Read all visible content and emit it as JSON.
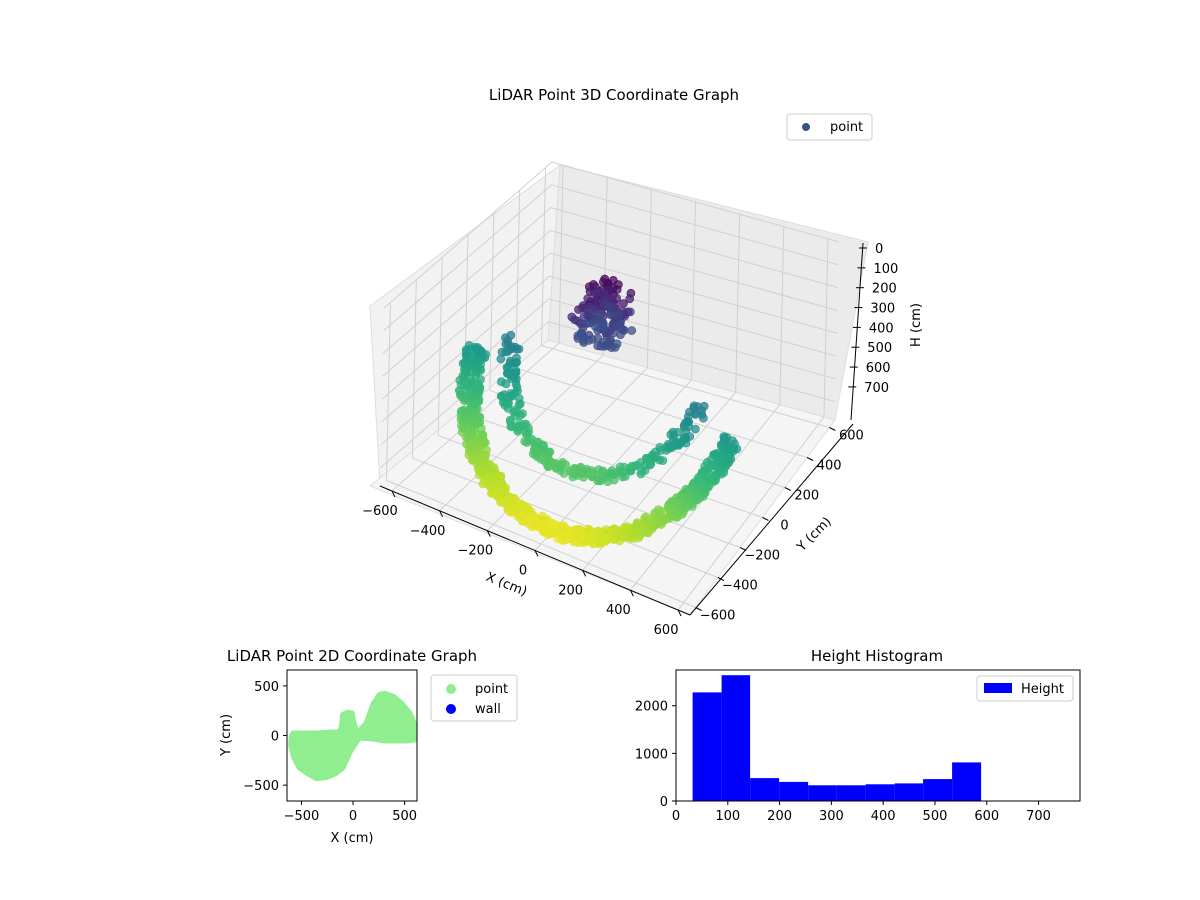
{
  "chart_data": [
    {
      "type": "scatter",
      "projection": "3d",
      "title": "LiDAR Point 3D Coordinate Graph",
      "xlabel": "X (cm)",
      "ylabel": "Y (cm)",
      "zlabel": "H (cm)",
      "xticks": [
        -600,
        -400,
        -200,
        0,
        200,
        400,
        600
      ],
      "yticks": [
        -600,
        -400,
        -200,
        0,
        200,
        400,
        600
      ],
      "zticks": [
        0,
        100,
        200,
        300,
        400,
        500,
        600,
        700
      ],
      "xlim": [
        -650,
        650
      ],
      "ylim": [
        -650,
        650
      ],
      "zlim": [
        0,
        780
      ],
      "zaxis_inverted": true,
      "colormap": "viridis",
      "grid": true,
      "legend": {
        "entries": [
          "point"
        ],
        "placement": "top-right"
      },
      "series": [
        {
          "name": "point",
          "color_by": "height",
          "components": [
            {
              "shape": "outer-ring",
              "radius_range": [
                520,
                600
              ],
              "x_range": [
                -600,
                600
              ],
              "height_range": [
                350,
                740
              ]
            },
            {
              "shape": "inner-ring",
              "radius_range": [
                380,
                450
              ],
              "x_range": [
                -450,
                450
              ],
              "height_range": [
                280,
                560
              ]
            },
            {
              "shape": "inner-cluster",
              "x_range": [
                -120,
                60
              ],
              "y_range": [
                -150,
                60
              ],
              "height_range": [
                10,
                200
              ]
            }
          ]
        }
      ]
    },
    {
      "type": "scatter",
      "title": "LiDAR Point 2D Coordinate Graph",
      "xlabel": "X (cm)",
      "ylabel": "Y (cm)",
      "xticks": [
        -500,
        0,
        500
      ],
      "yticks": [
        -500,
        0,
        500
      ],
      "xlim": [
        -640,
        620
      ],
      "ylim": [
        -660,
        660
      ],
      "legend": {
        "entries": [
          "point",
          "wall"
        ],
        "placement": "outside-right"
      },
      "series": [
        {
          "name": "point",
          "color": "#90ee90",
          "outline": [
            [
              -580,
              20
            ],
            [
              -480,
              20
            ],
            [
              -360,
              20
            ],
            [
              -200,
              30
            ],
            [
              -130,
              30
            ],
            [
              -110,
              80
            ],
            [
              -95,
              210
            ],
            [
              -50,
              230
            ],
            [
              -10,
              220
            ],
            [
              0,
              140
            ],
            [
              40,
              20
            ],
            [
              130,
              120
            ],
            [
              200,
              320
            ],
            [
              260,
              410
            ],
            [
              310,
              420
            ],
            [
              390,
              390
            ],
            [
              470,
              320
            ],
            [
              550,
              220
            ],
            [
              590,
              120
            ],
            [
              590,
              -40
            ],
            [
              530,
              -50
            ],
            [
              300,
              -50
            ],
            [
              200,
              -30
            ],
            [
              60,
              -20
            ],
            [
              20,
              -80
            ],
            [
              -30,
              -160
            ],
            [
              -100,
              -320
            ],
            [
              -170,
              -380
            ],
            [
              -260,
              -420
            ],
            [
              -350,
              -430
            ],
            [
              -440,
              -380
            ],
            [
              -520,
              -320
            ],
            [
              -570,
              -220
            ],
            [
              -600,
              -100
            ],
            [
              -595,
              -20
            ]
          ]
        },
        {
          "name": "wall",
          "color": "#0000ff",
          "points": []
        }
      ]
    },
    {
      "type": "bar",
      "subtype": "histogram",
      "title": "Height Histogram",
      "xticks": [
        0,
        100,
        200,
        300,
        400,
        500,
        600,
        700
      ],
      "yticks": [
        0,
        1000,
        2000
      ],
      "xlim": [
        0,
        780
      ],
      "ylim": [
        0,
        2750
      ],
      "legend": {
        "entries": [
          "Height"
        ],
        "placement": "top-right"
      },
      "series": [
        {
          "name": "Height",
          "color": "#0000ff",
          "bin_edges": [
            32,
            88,
            143,
            199,
            255,
            310,
            366,
            422,
            477,
            533,
            589
          ],
          "values": [
            2280,
            2640,
            480,
            400,
            330,
            330,
            350,
            370,
            460,
            810
          ]
        }
      ]
    }
  ]
}
